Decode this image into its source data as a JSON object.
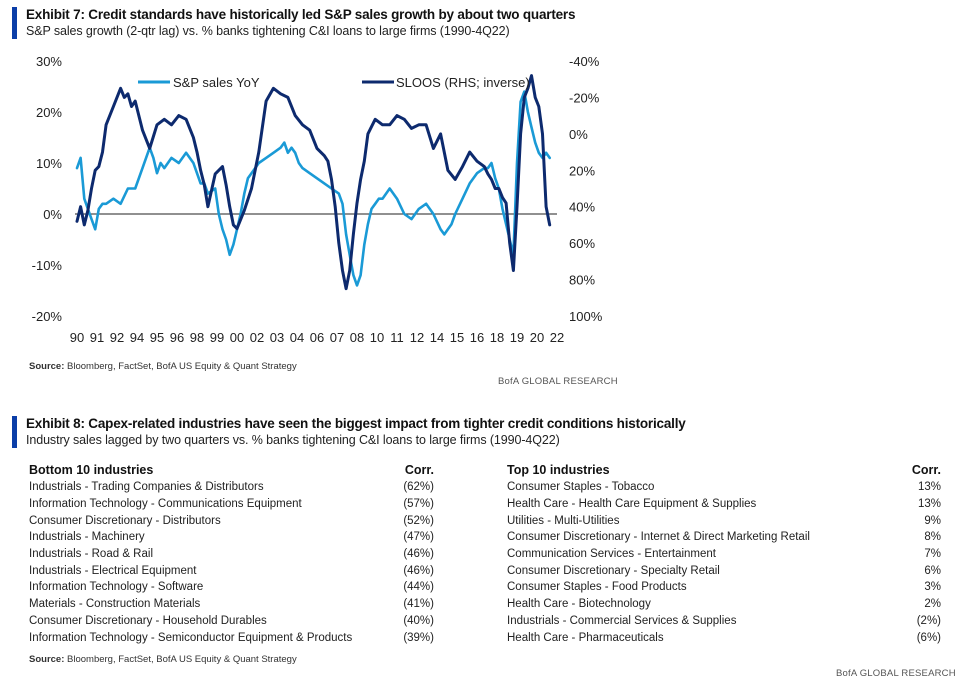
{
  "exhibit7": {
    "title": "Exhibit 7: Credit standards have historically led S&P sales growth by about two quarters",
    "subtitle": "S&P sales growth (2-qtr lag) vs. % banks tightening C&I loans to large firms (1990-4Q22)",
    "source_label": "Source:",
    "source_text": " Bloomberg, FactSet, BofA US Equity & Quant Strategy",
    "brand": "BofA GLOBAL RESEARCH"
  },
  "chart_data": {
    "type": "line",
    "title": "S&P sales growth (2-qtr lag) vs. % banks tightening C&I loans to large firms (1990-4Q22)",
    "x_tick_labels": [
      "90",
      "91",
      "92",
      "94",
      "95",
      "96",
      "98",
      "99",
      "00",
      "02",
      "03",
      "04",
      "06",
      "07",
      "08",
      "10",
      "11",
      "12",
      "14",
      "15",
      "16",
      "18",
      "19",
      "20",
      "22"
    ],
    "x_tick_years": [
      1990,
      1991.375,
      1992.75,
      1994.125,
      1995.5,
      1996.875,
      1998.25,
      1999.625,
      2001,
      2002.375,
      2003.75,
      2005.125,
      2006.5,
      2007.875,
      2009.25,
      2010.625,
      2012,
      2013.375,
      2014.75,
      2016.125,
      2017.5,
      2018.875,
      2020.25,
      2021.625,
      2023
    ],
    "xlim": [
      1990,
      2023
    ],
    "y_left": {
      "ticks": [
        "30%",
        "20%",
        "10%",
        "0%",
        "-10%",
        "-20%"
      ],
      "lim": [
        -20,
        30
      ]
    },
    "y_right": {
      "ticks": [
        "-40%",
        "-20%",
        "0%",
        "20%",
        "40%",
        "60%",
        "80%",
        "100%"
      ],
      "lim": [
        -40,
        100
      ],
      "inverted": true
    },
    "legend": [
      "S&P sales YoY",
      "SLOOS (RHS; inverse)"
    ],
    "series": [
      {
        "name": "S&P sales YoY",
        "axis": "left",
        "color": "#1a9ad6",
        "x": [
          1990,
          1990.25,
          1990.5,
          1990.75,
          1991,
          1991.25,
          1991.5,
          1991.75,
          1992,
          1992.5,
          1993,
          1993.5,
          1994,
          1994.5,
          1995,
          1995.25,
          1995.5,
          1995.75,
          1996,
          1996.5,
          1997,
          1997.5,
          1998,
          1998.25,
          1998.5,
          1998.75,
          1999,
          1999.5,
          1999.75,
          2000,
          2000.25,
          2000.5,
          2000.75,
          2001,
          2001.25,
          2001.5,
          2001.75,
          2002,
          2002.5,
          2003,
          2003.5,
          2004,
          2004.25,
          2004.5,
          2004.75,
          2005,
          2005.25,
          2005.5,
          2006,
          2006.5,
          2007,
          2007.5,
          2008,
          2008.25,
          2008.5,
          2008.75,
          2009,
          2009.25,
          2009.5,
          2009.75,
          2010,
          2010.25,
          2010.5,
          2010.75,
          2011,
          2011.5,
          2012,
          2012.5,
          2013,
          2013.5,
          2014,
          2014.5,
          2015,
          2015.25,
          2015.5,
          2015.75,
          2016,
          2016.5,
          2017,
          2017.5,
          2018,
          2018.25,
          2018.5,
          2018.75,
          2019,
          2019.25,
          2019.5,
          2019.75,
          2020,
          2020.25,
          2020.5,
          2020.75,
          2021,
          2021.25,
          2021.5,
          2021.75,
          2022,
          2022.25,
          2022.5
        ],
        "y": [
          9,
          11,
          3,
          1,
          -1,
          -3,
          1,
          2,
          2,
          3,
          2,
          5,
          5,
          9,
          13,
          11,
          8,
          10,
          9,
          11,
          10,
          12,
          10,
          8,
          6,
          6,
          4,
          5,
          0,
          -3,
          -5,
          -8,
          -6,
          -3,
          0,
          4,
          7,
          8,
          10,
          11,
          12,
          13,
          14,
          12,
          13,
          12,
          10,
          9,
          8,
          7,
          6,
          5,
          4,
          2,
          -4,
          -8,
          -12,
          -14,
          -12,
          -6,
          -2,
          1,
          2,
          3,
          3,
          5,
          3,
          0,
          -1,
          1,
          2,
          0,
          -3,
          -4,
          -3,
          -2,
          0,
          3,
          6,
          8,
          9,
          9,
          10,
          7,
          5,
          1,
          -2,
          -5,
          -8,
          10,
          22,
          24,
          20,
          17,
          14,
          12,
          11,
          12,
          11
        ]
      },
      {
        "name": "SLOOS (RHS; inverse)",
        "axis": "right",
        "color": "#0d2a6e",
        "x": [
          1990,
          1990.25,
          1990.5,
          1990.75,
          1991,
          1991.25,
          1991.5,
          1991.75,
          1992,
          1992.5,
          1993,
          1993.25,
          1993.5,
          1993.75,
          1994,
          1994.5,
          1995,
          1995.5,
          1996,
          1996.5,
          1997,
          1997.5,
          1998,
          1998.25,
          1998.5,
          1998.75,
          1999,
          1999.5,
          2000,
          2000.25,
          2000.5,
          2000.75,
          2001,
          2001.5,
          2002,
          2002.5,
          2003,
          2003.5,
          2004,
          2004.5,
          2005,
          2005.5,
          2006,
          2006.5,
          2007,
          2007.25,
          2007.5,
          2007.75,
          2008,
          2008.25,
          2008.5,
          2008.75,
          2009,
          2009.25,
          2009.5,
          2009.75,
          2010,
          2010.5,
          2011,
          2011.5,
          2012,
          2012.5,
          2013,
          2013.5,
          2014,
          2014.5,
          2015,
          2015.5,
          2016,
          2016.5,
          2017,
          2017.5,
          2018,
          2018.25,
          2018.5,
          2018.75,
          2019,
          2019.25,
          2019.5,
          2019.75,
          2020,
          2020.25,
          2020.5,
          2020.75,
          2021,
          2021.25,
          2021.5,
          2021.75,
          2022,
          2022.25,
          2022.5
        ],
        "y": [
          48,
          40,
          50,
          42,
          30,
          20,
          18,
          10,
          -5,
          -15,
          -25,
          -20,
          -22,
          -15,
          -18,
          -2,
          8,
          -5,
          -8,
          -5,
          -10,
          -8,
          2,
          10,
          20,
          28,
          40,
          22,
          18,
          28,
          40,
          50,
          52,
          42,
          30,
          10,
          -18,
          -25,
          -22,
          -20,
          -10,
          -5,
          -2,
          8,
          12,
          15,
          25,
          40,
          60,
          75,
          85,
          75,
          55,
          38,
          25,
          15,
          0,
          -8,
          -5,
          -5,
          -10,
          -8,
          -3,
          -5,
          -5,
          8,
          0,
          20,
          25,
          18,
          10,
          15,
          18,
          22,
          25,
          30,
          30,
          35,
          38,
          60,
          75,
          40,
          0,
          -20,
          -25,
          -32,
          -20,
          -15,
          0,
          40,
          50
        ]
      }
    ]
  },
  "exhibit8": {
    "title": "Exhibit 8: Capex-related industries have seen the biggest impact from tighter credit conditions historically",
    "subtitle": "Industry sales lagged by two quarters vs. % banks tightening C&I loans to large firms (1990-4Q22)",
    "bottom": {
      "header": "Bottom 10 industries",
      "corr_header": "Corr.",
      "rows": [
        {
          "name": "Industrials - Trading Companies & Distributors",
          "corr": "(62%)"
        },
        {
          "name": "Information Technology - Communications Equipment",
          "corr": "(57%)"
        },
        {
          "name": "Consumer Discretionary - Distributors",
          "corr": "(52%)"
        },
        {
          "name": "Industrials - Machinery",
          "corr": "(47%)"
        },
        {
          "name": "Industrials - Road & Rail",
          "corr": "(46%)"
        },
        {
          "name": "Industrials - Electrical Equipment",
          "corr": "(46%)"
        },
        {
          "name": "Information Technology - Software",
          "corr": "(44%)"
        },
        {
          "name": "Materials - Construction Materials",
          "corr": "(41%)"
        },
        {
          "name": "Consumer Discretionary - Household Durables",
          "corr": "(40%)"
        },
        {
          "name": "Information Technology - Semiconductor Equipment & Products",
          "corr": "(39%)"
        }
      ]
    },
    "top": {
      "header": "Top 10 industries",
      "corr_header": "Corr.",
      "rows": [
        {
          "name": "Consumer Staples - Tobacco",
          "corr": "13%"
        },
        {
          "name": "Health Care - Health Care Equipment & Supplies",
          "corr": "13%"
        },
        {
          "name": "Utilities - Multi-Utilities",
          "corr": "9%"
        },
        {
          "name": "Consumer Discretionary - Internet & Direct Marketing Retail",
          "corr": "8%"
        },
        {
          "name": "Communication Services - Entertainment",
          "corr": "7%"
        },
        {
          "name": "Consumer Discretionary - Specialty Retail",
          "corr": "6%"
        },
        {
          "name": "Consumer Staples - Food Products",
          "corr": "3%"
        },
        {
          "name": "Health Care - Biotechnology",
          "corr": "2%"
        },
        {
          "name": "Industrials - Commercial Services & Supplies",
          "corr": "(2%)"
        },
        {
          "name": "Health Care - Pharmaceuticals",
          "corr": "(6%)"
        }
      ]
    },
    "source_label": "Source:",
    "source_text": " Bloomberg, FactSet, BofA US Equity & Quant Strategy",
    "brand": "BofA GLOBAL RESEARCH"
  }
}
